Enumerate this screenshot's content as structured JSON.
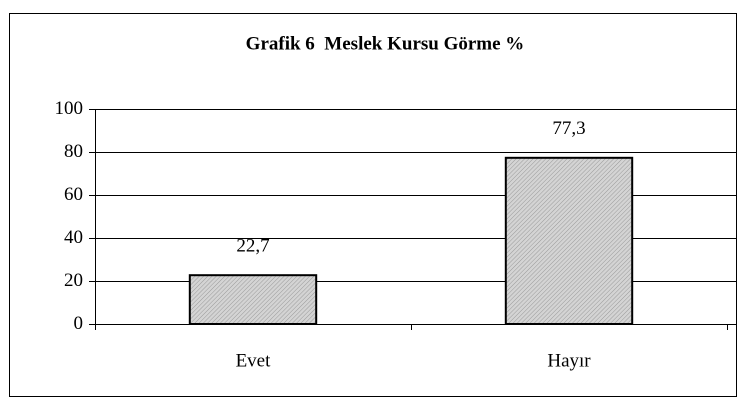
{
  "chart_data": {
    "type": "bar",
    "title": "Grafik 6  Meslek Kursu Görme %",
    "categories": [
      "Evet",
      "Hayır"
    ],
    "values": [
      22.7,
      77.3
    ],
    "value_labels": [
      "22,7",
      "77,3"
    ],
    "color": "#c0c0c0",
    "ylim": [
      0,
      100
    ],
    "yticks": [
      0,
      20,
      40,
      60,
      80,
      100
    ],
    "grid": true
  }
}
